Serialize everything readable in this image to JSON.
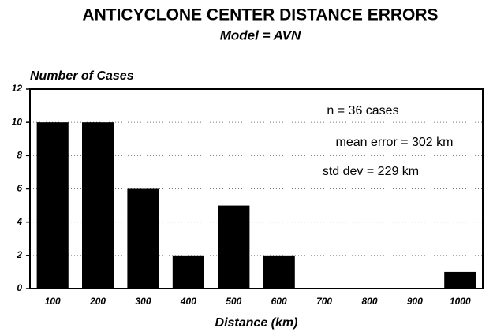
{
  "chart_data": {
    "type": "bar",
    "title": "ANTICYCLONE CENTER DISTANCE ERRORS",
    "subtitle": "Model = AVN",
    "y_label": "Number of Cases",
    "x_label": "Distance (km)",
    "annotations": [
      "n = 36 cases",
      "mean error = 302 km",
      "std dev = 229 km"
    ],
    "categories": [
      "100",
      "200",
      "300",
      "400",
      "500",
      "600",
      "700",
      "800",
      "900",
      "1000"
    ],
    "values": [
      10,
      10,
      6,
      2,
      5,
      2,
      0,
      0,
      0,
      1
    ],
    "color": "#000000",
    "ylim": [
      0,
      12
    ],
    "yticks": [
      0,
      2,
      4,
      6,
      8,
      10,
      12
    ],
    "grid": true
  }
}
